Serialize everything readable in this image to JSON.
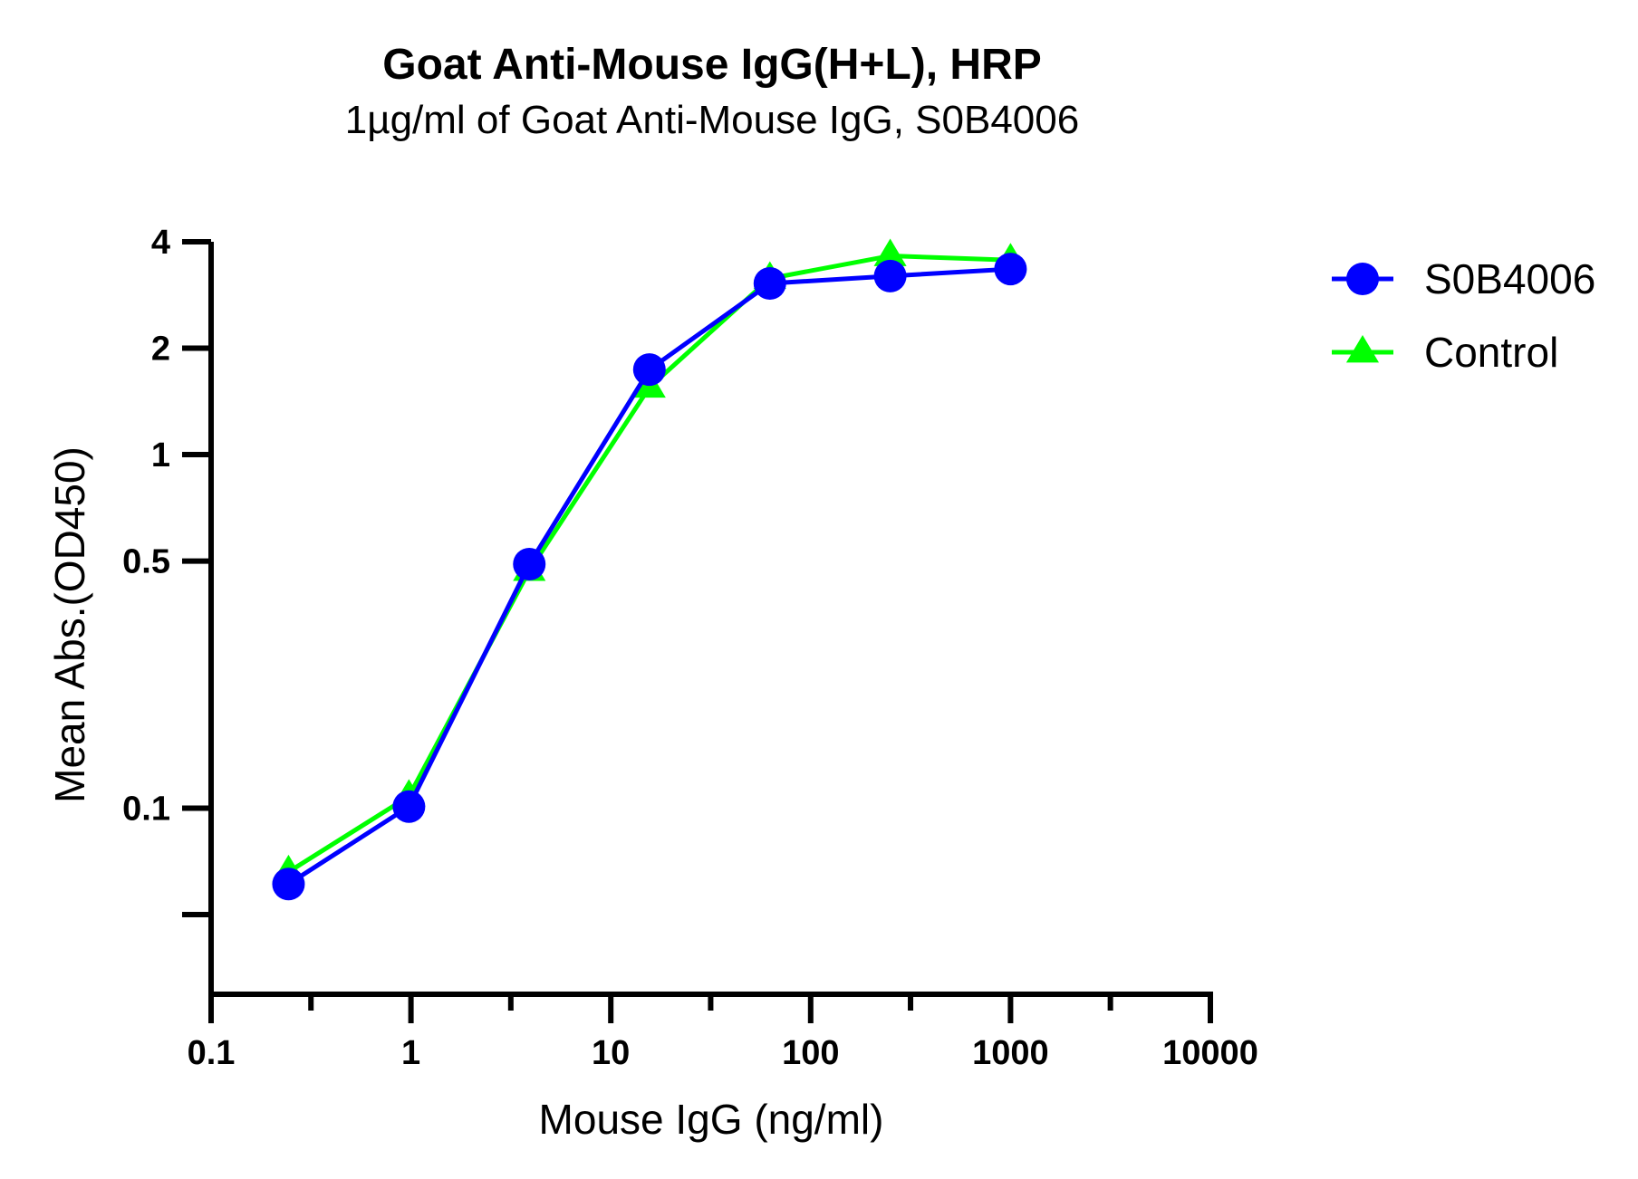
{
  "chart_data": {
    "type": "line",
    "title": "Goat Anti-Mouse IgG(H+L), HRP",
    "subtitle": "1µg/ml of Goat Anti-Mouse IgG, S0B4006",
    "xlabel": "Mouse IgG (ng/ml)",
    "ylabel": "Mean Abs.(OD450)",
    "x_scale": "log",
    "y_scale": "log",
    "xlim": [
      0.1,
      10000
    ],
    "ylim": [
      0.04,
      4
    ],
    "x_ticks": [
      {
        "value": 0.1,
        "label": "0.1"
      },
      {
        "value": 1,
        "label": "1"
      },
      {
        "value": 10,
        "label": "10"
      },
      {
        "value": 100,
        "label": "100"
      },
      {
        "value": 1000,
        "label": "1000"
      },
      {
        "value": 10000,
        "label": "10000"
      }
    ],
    "x_minor_ticks": [
      0.316,
      3.16,
      31.6,
      316,
      3160
    ],
    "y_ticks": [
      {
        "value": 4,
        "label": "4"
      },
      {
        "value": 2,
        "label": "2"
      },
      {
        "value": 1,
        "label": "1"
      },
      {
        "value": 0.5,
        "label": "0.5"
      },
      {
        "value": 0.1,
        "label": "0.1"
      },
      {
        "value": 0.05,
        "label": ""
      }
    ],
    "x": [
      0.244,
      0.977,
      3.91,
      15.6,
      62.5,
      250,
      1000
    ],
    "series": [
      {
        "name": "S0B4006",
        "color": "#0000ff",
        "marker": "circle",
        "values": [
          0.061,
          0.101,
          0.49,
          1.74,
          3.05,
          3.2,
          3.35
        ]
      },
      {
        "name": "Control",
        "color": "#00ff00",
        "marker": "triangle",
        "values": [
          0.066,
          0.108,
          0.47,
          1.55,
          3.15,
          3.65,
          3.55
        ]
      }
    ],
    "legend": "top-right",
    "grid": false
  }
}
